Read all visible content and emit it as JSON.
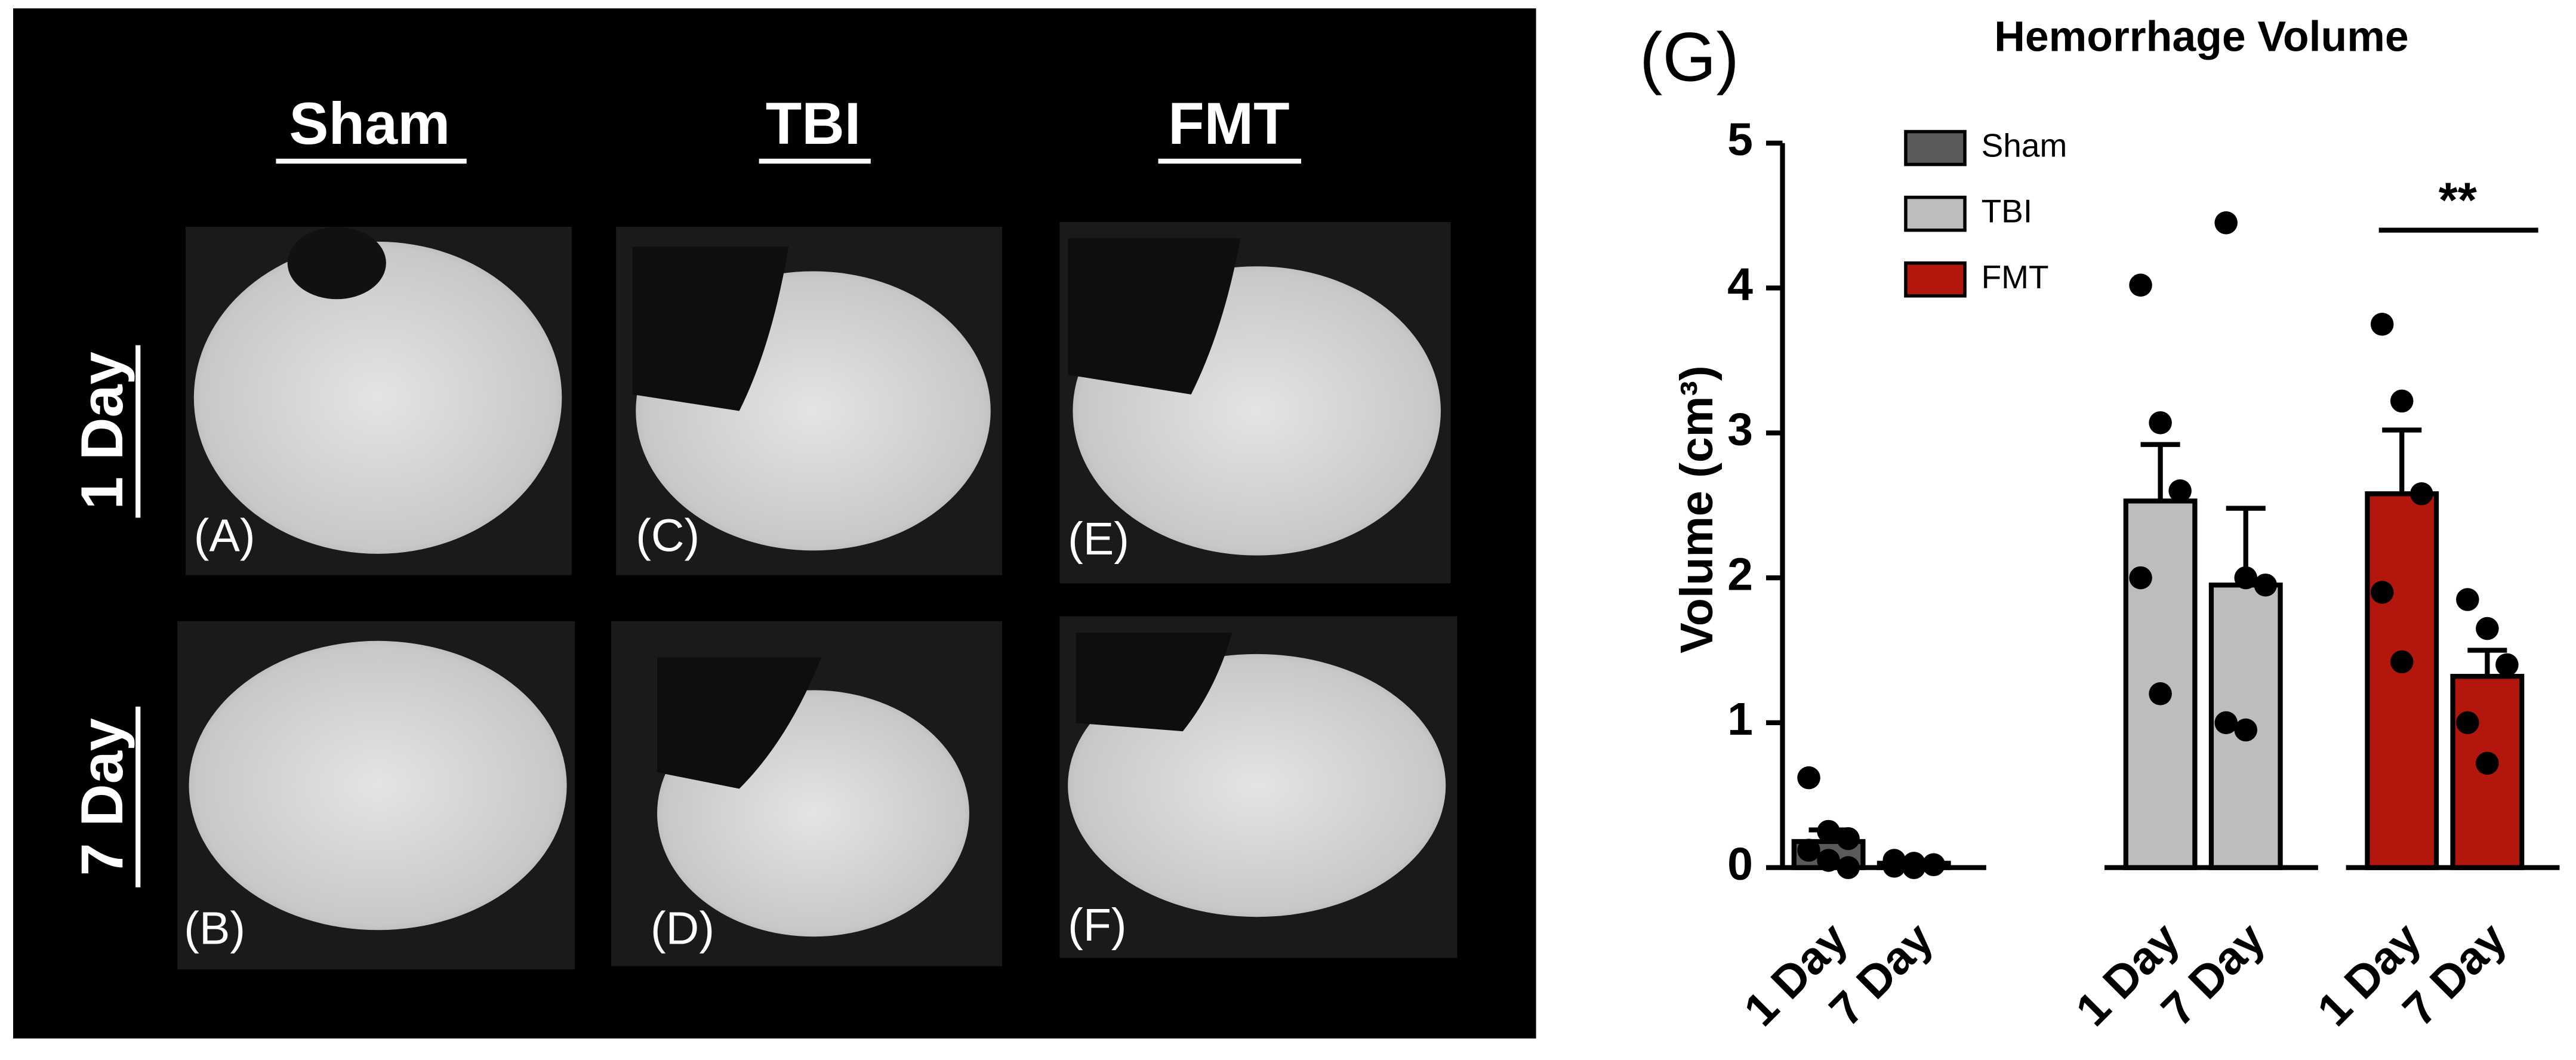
{
  "figure": {
    "columns": [
      "Sham",
      "TBI",
      "FMT"
    ],
    "rows": [
      "1 Day",
      "7 Day"
    ],
    "panels": [
      "(A)",
      "(B)",
      "(C)",
      "(D)",
      "(E)",
      "(F)"
    ]
  },
  "chart_data": {
    "type": "bar",
    "panel_label": "(G)",
    "title": "Hemorrhage Volume",
    "y_label": "Volume (cm³)",
    "categories": [
      "1 Day",
      "7 Day"
    ],
    "series": [
      {
        "name": "Sham",
        "color": "#5a5a5a",
        "values": [
          0.18,
          0.03
        ],
        "errors": [
          0.08,
          0.01
        ],
        "points": [
          [
            0.62,
            0.25,
            0.2,
            0.12,
            0.05,
            0.0
          ],
          [
            0.05,
            0.03,
            0.02,
            0.01,
            0.0
          ]
        ]
      },
      {
        "name": "TBI",
        "color": "#bdbdbd",
        "values": [
          2.53,
          1.95
        ],
        "errors": [
          0.39,
          0.53
        ],
        "points": [
          [
            4.02,
            3.07,
            2.6,
            2.0,
            1.2
          ],
          [
            4.45,
            2.0,
            1.95,
            1.0,
            0.95
          ]
        ]
      },
      {
        "name": "FMT",
        "color": "#b3160d",
        "values": [
          2.58,
          1.32
        ],
        "errors": [
          0.44,
          0.18
        ],
        "points": [
          [
            3.75,
            3.22,
            2.58,
            1.9,
            1.42
          ],
          [
            1.85,
            1.65,
            1.4,
            1.0,
            0.72
          ]
        ]
      }
    ],
    "annotation": "**",
    "ylim": [
      0,
      5
    ],
    "yticks": [
      0,
      1,
      2,
      3,
      4,
      5
    ]
  }
}
